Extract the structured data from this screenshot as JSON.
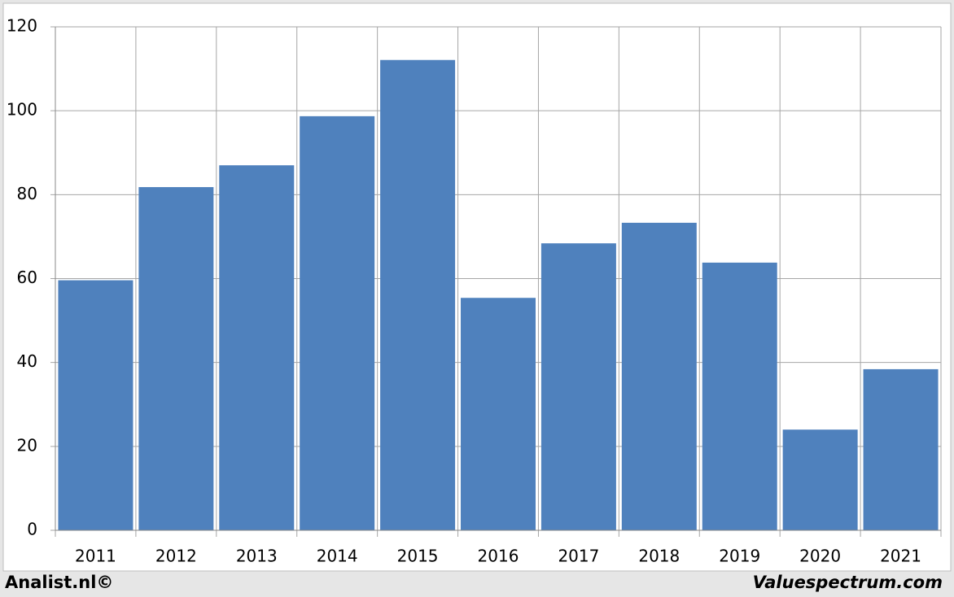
{
  "chart_data": {
    "type": "bar",
    "categories": [
      "2011",
      "2012",
      "2013",
      "2014",
      "2015",
      "2016",
      "2017",
      "2018",
      "2019",
      "2020",
      "2021"
    ],
    "values": [
      59.6,
      81.8,
      87.0,
      98.7,
      112.1,
      55.4,
      68.4,
      73.3,
      63.8,
      24.0,
      38.4
    ],
    "color": "#4f81bd",
    "ylim": [
      0,
      120
    ],
    "yticks": [
      0,
      20,
      40,
      60,
      80,
      100,
      120
    ],
    "grid": true,
    "credits": [
      "Analist.nl©",
      "Valuespectrum.com"
    ]
  }
}
